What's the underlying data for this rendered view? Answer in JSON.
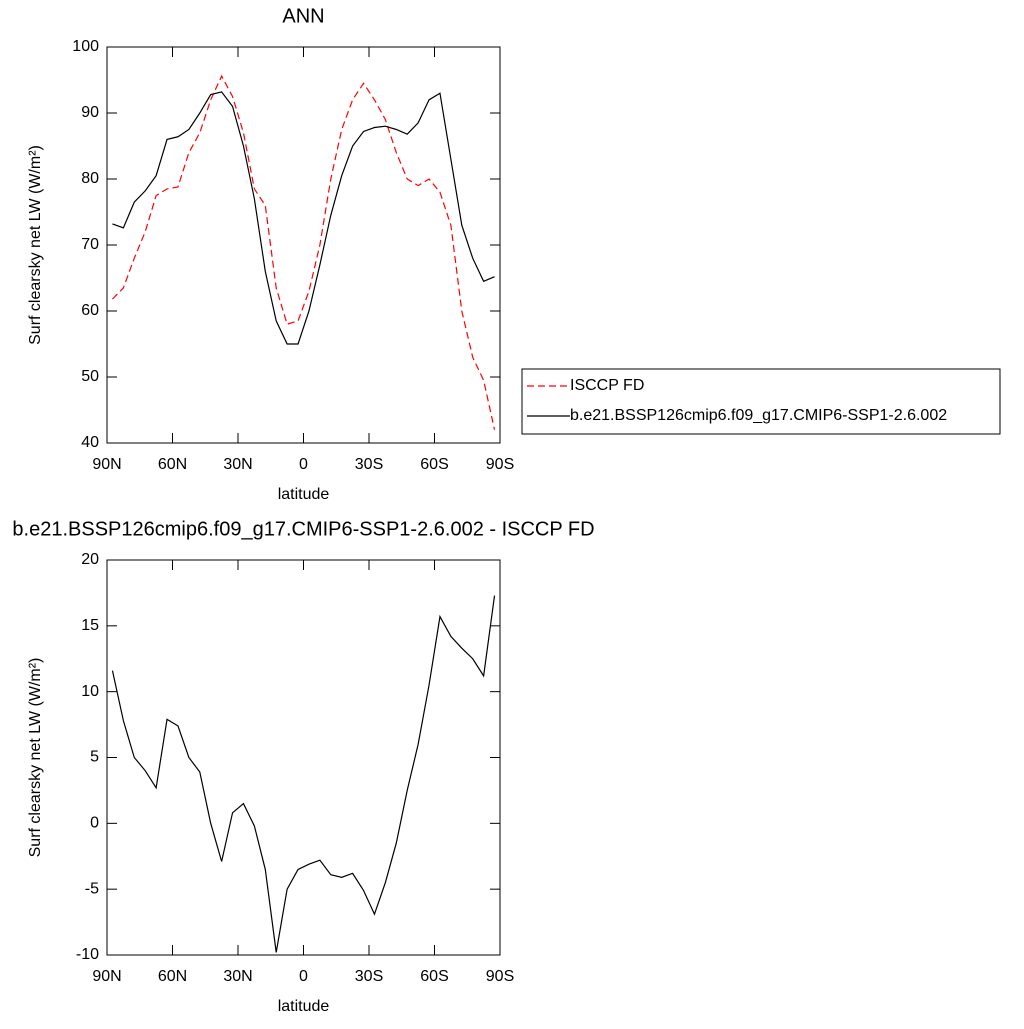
{
  "chart_data": [
    {
      "type": "line",
      "title": "ANN",
      "xlabel": "latitude",
      "ylabel": "Surf clearsky net LW (W/m²)",
      "x": [
        87.5,
        82.5,
        77.5,
        72.5,
        67.5,
        62.5,
        57.5,
        52.5,
        47.5,
        42.5,
        37.5,
        32.5,
        27.5,
        22.5,
        17.5,
        12.5,
        7.5,
        2.5,
        -2.5,
        -7.5,
        -12.5,
        -17.5,
        -22.5,
        -27.5,
        -32.5,
        -37.5,
        -42.5,
        -47.5,
        -52.5,
        -57.5,
        -62.5,
        -67.5,
        -72.5,
        -77.5,
        -82.5,
        -87.5
      ],
      "series": [
        {
          "name": "ISCCP FD",
          "color": "#ff0000",
          "dash": true,
          "values": [
            61.8,
            63.5,
            68,
            72,
            77.5,
            78.5,
            78.8,
            84,
            87,
            92,
            95.6,
            92.5,
            87,
            78.5,
            76,
            63.5,
            58,
            58.5,
            63,
            70,
            80,
            87.5,
            92,
            94.5,
            92,
            89,
            84,
            80,
            79,
            80,
            78,
            73,
            60,
            53,
            49.5,
            42
          ]
        },
        {
          "name": "b.e21.BSSP126cmip6.f09_g17.CMIP6-SSP1-2.6.002",
          "color": "#000000",
          "dash": false,
          "values": [
            73.2,
            72.6,
            76.5,
            78.2,
            80.5,
            86,
            86.4,
            87.5,
            90,
            92.8,
            93.2,
            91,
            85,
            77,
            66,
            58.5,
            55,
            55,
            60,
            67,
            74.5,
            80.5,
            85,
            87.2,
            87.8,
            88,
            87.5,
            86.8,
            88.5,
            92,
            93,
            83,
            73,
            68,
            64.5,
            65.2
          ]
        }
      ],
      "xlim": [
        90,
        -90
      ],
      "xticks": [
        {
          "value": 90,
          "label": "90N"
        },
        {
          "value": 60,
          "label": "60N"
        },
        {
          "value": 30,
          "label": "30N"
        },
        0,
        {
          "value": -30,
          "label": "30S"
        },
        {
          "value": -60,
          "label": "60S"
        },
        {
          "value": -90,
          "label": "90S"
        }
      ],
      "ylim": [
        40,
        100
      ],
      "yticks": [
        40,
        50,
        60,
        70,
        80,
        90,
        100
      ],
      "legend": "right"
    },
    {
      "type": "line",
      "title": "b.e21.BSSP126cmip6.f09_g17.CMIP6-SSP1-2.6.002 - ISCCP FD",
      "xlabel": "latitude",
      "ylabel": "Surf clearsky net LW (W/m²)",
      "x": [
        87.5,
        82.5,
        77.5,
        72.5,
        67.5,
        62.5,
        57.5,
        52.5,
        47.5,
        42.5,
        37.5,
        32.5,
        27.5,
        22.5,
        17.5,
        12.5,
        7.5,
        2.5,
        -2.5,
        -7.5,
        -12.5,
        -17.5,
        -22.5,
        -27.5,
        -32.5,
        -37.5,
        -42.5,
        -47.5,
        -52.5,
        -57.5,
        -62.5,
        -67.5,
        -72.5,
        -77.5,
        -82.5,
        -87.5
      ],
      "series": [
        {
          "color": "#000000",
          "dash": false,
          "values": [
            11.6,
            7.8,
            5,
            4,
            2.7,
            7.9,
            7.4,
            5,
            3.9,
            0,
            -2.9,
            0.8,
            1.5,
            -0.2,
            -3.5,
            -9.8,
            -5,
            -3.5,
            -3.1,
            -2.8,
            -3.9,
            -4.1,
            -3.8,
            -5.1,
            -6.9,
            -4.5,
            -1.5,
            2.5,
            6,
            10.5,
            15.7,
            14.2,
            13.3,
            12.5,
            11.2,
            17.3
          ]
        }
      ],
      "xlim": [
        90,
        -90
      ],
      "xticks": [
        {
          "value": 90,
          "label": "90N"
        },
        {
          "value": 60,
          "label": "60N"
        },
        {
          "value": 30,
          "label": "30N"
        },
        0,
        {
          "value": -30,
          "label": "30S"
        },
        {
          "value": -60,
          "label": "60S"
        },
        {
          "value": -90,
          "label": "90S"
        }
      ],
      "ylim": [
        -10,
        20
      ],
      "yticks": [
        -10,
        -5,
        0,
        5,
        10,
        15,
        20
      ]
    }
  ]
}
